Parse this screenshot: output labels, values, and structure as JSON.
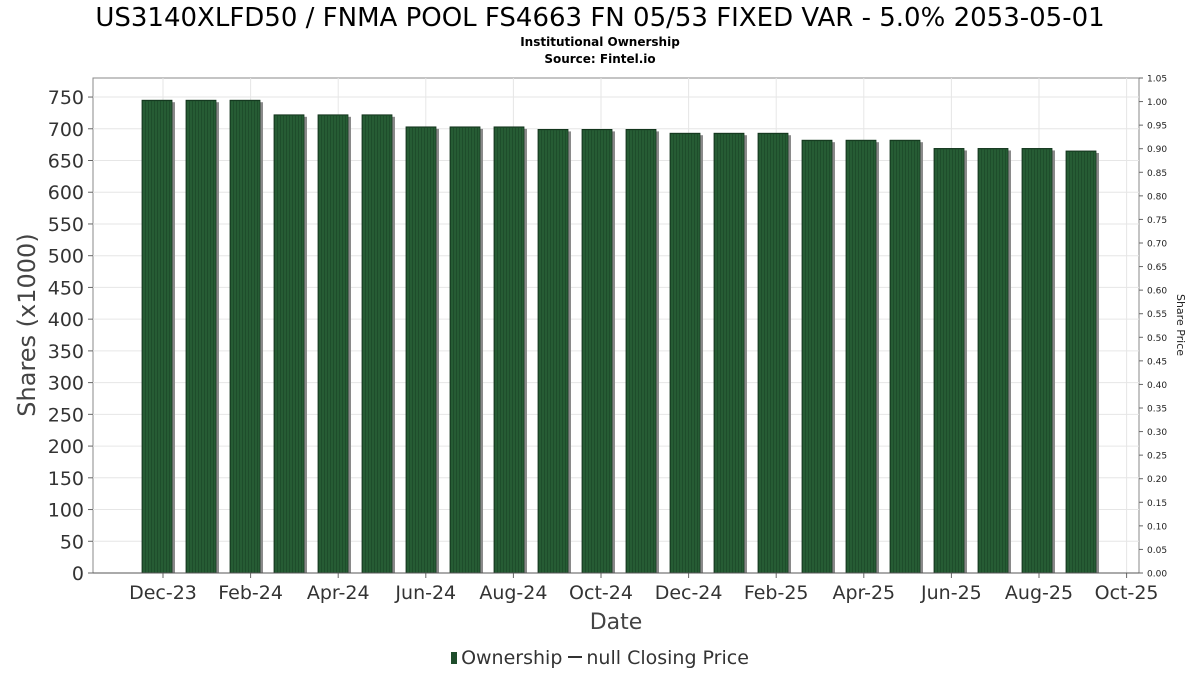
{
  "chart_data": {
    "type": "bar",
    "title": "US3140XLFD50 / FNMA POOL FS4663 FN 05/53 FIXED VAR - 5.0% 2053-05-01",
    "subtitle": "Institutional Ownership",
    "source": "Source: Fintel.io",
    "xlabel": "Date",
    "ylabel": "Shares (x1000)",
    "y2label": "Share Price",
    "ylim": [
      0,
      780
    ],
    "y2lim": [
      0,
      1.05
    ],
    "yticks": [
      0,
      50,
      100,
      150,
      200,
      250,
      300,
      350,
      400,
      450,
      500,
      550,
      600,
      650,
      700,
      750
    ],
    "y2ticks": [
      "0.00",
      "0.05",
      "0.10",
      "0.15",
      "0.20",
      "0.25",
      "0.30",
      "0.35",
      "0.40",
      "0.45",
      "0.50",
      "0.55",
      "0.60",
      "0.65",
      "0.70",
      "0.75",
      "0.80",
      "0.85",
      "0.90",
      "0.95",
      "1.00",
      "1.05"
    ],
    "xticks": [
      "Dec-23",
      "Feb-24",
      "Apr-24",
      "Jun-24",
      "Aug-24",
      "Oct-24",
      "Dec-24",
      "Feb-25",
      "Apr-25",
      "Jun-25",
      "Aug-25",
      "Oct-25"
    ],
    "grid": true,
    "legend_position": "bottom",
    "series": [
      {
        "name": "Ownership",
        "color": "#1e4d2b",
        "values": [
          745,
          745,
          745,
          722,
          722,
          722,
          703,
          703,
          703,
          699,
          699,
          699,
          693,
          693,
          693,
          682,
          682,
          682,
          669,
          669,
          669,
          665
        ]
      }
    ],
    "legend": {
      "ownership_label": "Ownership",
      "price_label": "null Closing Price"
    }
  }
}
